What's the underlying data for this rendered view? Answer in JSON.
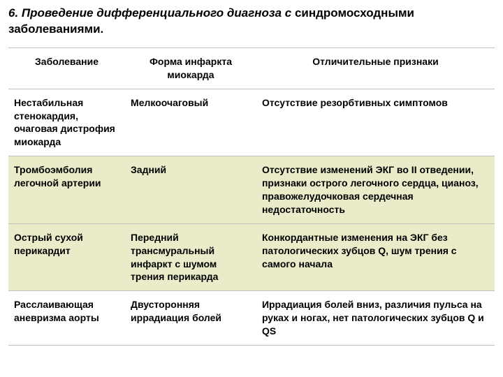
{
  "title": {
    "part1_italic": "6. Проведение дифференциального диагноза",
    "part2_italic": " с ",
    "part3_bold": "синдромосходными",
    "part4_bold": "заболеваниями."
  },
  "table": {
    "columns": [
      "Заболевание",
      "Форма инфаркта миокарда",
      "Отличительные  признаки"
    ],
    "col_widths": [
      "24%",
      "27%",
      "49%"
    ],
    "row_colors": [
      "#ffffff",
      "#e9ebc9",
      "#e9ebc9",
      "#ffffff"
    ],
    "border_color": "#c0c0c0",
    "font_size": 14,
    "rows": [
      {
        "disease": "Нестабильная стенокардия, очаговая дистрофия миокарда",
        "form": "Мелкоочаговый",
        "signs": "Отсутствие резорбтивных симптомов"
      },
      {
        "disease": "Тромбоэмболия легочной артерии",
        "form": "Задний",
        "signs": "Отсутствие изменений ЭКГ во II отведении, признаки острого легочного сердца, цианоз, правожелудочковая сердечная недостаточность"
      },
      {
        "disease": "Острый сухой перикардит",
        "form": "Передний трансмуральный инфаркт с шумом трения перикарда",
        "signs": "Конкордантные  изменения  на ЭКГ без патологических зубцов Q,  шум трения с самого начала"
      },
      {
        "disease": "Расслаивающая аневризма аорты",
        "form": "Двусторонняя иррадиация болей",
        "signs": "Иррадиация болей  вниз,  различия пульса на руках и ногах, нет патологических зубцов Q и QS"
      }
    ]
  }
}
